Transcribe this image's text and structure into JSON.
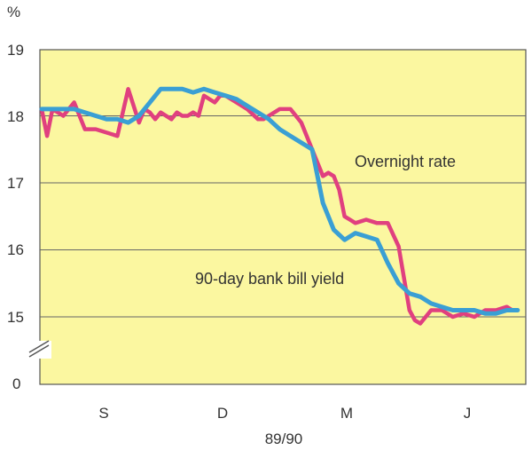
{
  "chart_data": {
    "type": "line",
    "title": "",
    "ylabel": "%",
    "xlabel": "89/90",
    "ylim": [
      15,
      19
    ],
    "y_ticks": [
      "19",
      "18",
      "17",
      "16",
      "15",
      "0"
    ],
    "x_ticks": [
      "S",
      "D",
      "M",
      "J"
    ],
    "axis_break": true,
    "grid": "horizontal",
    "colors": {
      "background": "#fbf7a0",
      "grid": "#666666",
      "overnight": "#e0407f",
      "bill": "#3a9fd4"
    },
    "series": [
      {
        "name": "Overnight rate",
        "x": [
          0.0,
          0.05,
          0.1,
          0.2,
          0.3,
          0.4,
          0.5,
          0.6,
          0.7,
          0.8,
          0.9,
          0.95,
          1.0,
          1.05,
          1.1,
          1.15,
          1.2,
          1.25,
          1.3,
          1.35,
          1.4,
          1.45,
          1.5,
          1.55,
          1.6,
          1.65,
          1.7,
          1.8,
          1.9,
          2.0,
          2.05,
          2.1,
          2.2,
          2.3,
          2.4,
          2.5,
          2.6,
          2.65,
          2.7,
          2.75,
          2.8,
          2.85,
          2.9,
          3.0,
          3.1,
          3.2,
          3.3,
          3.4,
          3.45,
          3.5,
          3.55,
          3.6,
          3.65,
          3.7,
          3.8,
          3.9,
          4.0,
          4.1,
          4.2,
          4.3,
          4.35,
          4.4
        ],
        "values": [
          18.1,
          17.7,
          18.1,
          18.0,
          18.2,
          17.8,
          17.8,
          17.75,
          17.7,
          18.4,
          17.9,
          18.1,
          18.05,
          17.95,
          18.05,
          18.0,
          17.95,
          18.05,
          18.0,
          18.0,
          18.05,
          18.0,
          18.3,
          18.25,
          18.2,
          18.3,
          18.3,
          18.2,
          18.1,
          17.95,
          17.95,
          18.0,
          18.1,
          18.1,
          17.9,
          17.5,
          17.1,
          17.15,
          17.1,
          16.9,
          16.5,
          16.45,
          16.4,
          16.45,
          16.4,
          16.4,
          16.05,
          15.1,
          14.95,
          14.9,
          15.0,
          15.1,
          15.1,
          15.1,
          15.0,
          15.05,
          15.0,
          15.1,
          15.1,
          15.15,
          15.1,
          15.1
        ]
      },
      {
        "name": "90-day bank bill yield",
        "x": [
          0.0,
          0.1,
          0.2,
          0.3,
          0.4,
          0.5,
          0.6,
          0.7,
          0.8,
          0.9,
          1.0,
          1.1,
          1.2,
          1.3,
          1.4,
          1.5,
          1.6,
          1.7,
          1.8,
          1.9,
          2.0,
          2.1,
          2.2,
          2.3,
          2.4,
          2.5,
          2.6,
          2.7,
          2.8,
          2.9,
          3.0,
          3.1,
          3.2,
          3.3,
          3.4,
          3.5,
          3.6,
          3.7,
          3.8,
          3.9,
          4.0,
          4.1,
          4.2,
          4.3,
          4.4
        ],
        "values": [
          18.1,
          18.1,
          18.1,
          18.1,
          18.05,
          18.0,
          17.95,
          17.95,
          17.9,
          18.0,
          18.2,
          18.4,
          18.4,
          18.4,
          18.35,
          18.4,
          18.35,
          18.3,
          18.25,
          18.15,
          18.05,
          17.95,
          17.8,
          17.7,
          17.6,
          17.5,
          16.7,
          16.3,
          16.15,
          16.25,
          16.2,
          16.15,
          15.8,
          15.5,
          15.35,
          15.3,
          15.2,
          15.15,
          15.1,
          15.1,
          15.1,
          15.05,
          15.05,
          15.1,
          15.1
        ]
      }
    ],
    "annotations": [
      {
        "text": "Overnight rate",
        "series": 0
      },
      {
        "text": "90-day bank bill yield",
        "series": 1
      }
    ]
  }
}
